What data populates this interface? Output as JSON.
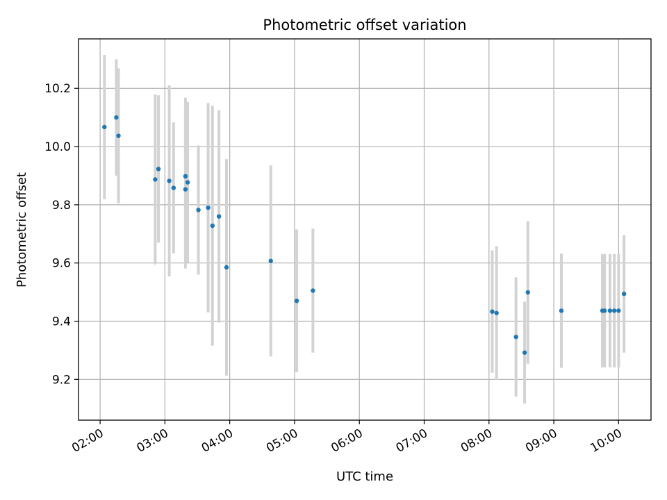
{
  "chart_data": {
    "type": "scatter",
    "title": "Photometric offset variation",
    "xlabel": "UTC time",
    "ylabel": "Photometric offset",
    "x_tick_labels": [
      "02:00",
      "03:00",
      "04:00",
      "05:00",
      "06:00",
      "07:00",
      "08:00",
      "09:00",
      "10:00"
    ],
    "y_tick_labels": [
      "9.2",
      "9.4",
      "9.6",
      "9.8",
      "10.0",
      "10.2"
    ],
    "x_ticks": [
      "02:00",
      "03:00",
      "04:00",
      "05:00",
      "06:00",
      "07:00",
      "08:00",
      "09:00",
      "10:00"
    ],
    "y_ticks": [
      9.2,
      9.4,
      9.6,
      9.8,
      10.0,
      10.2
    ],
    "xlim": [
      "01:40",
      "10:30"
    ],
    "ylim": [
      9.06,
      10.37
    ],
    "grid": true,
    "colors": {
      "marker": "#1f77b4",
      "errorbar": "#d3d3d3",
      "grid": "#b0b0b0"
    },
    "series": [
      {
        "points": [
          {
            "x": "02:04",
            "y": 10.067,
            "err": 0.248
          },
          {
            "x": "02:15",
            "y": 10.1,
            "err": 0.2
          },
          {
            "x": "02:17",
            "y": 10.037,
            "err": 0.232
          },
          {
            "x": "02:51",
            "y": 9.887,
            "err": 0.292
          },
          {
            "x": "02:54",
            "y": 9.923,
            "err": 0.253
          },
          {
            "x": "03:04",
            "y": 9.882,
            "err": 0.328
          },
          {
            "x": "03:08",
            "y": 9.858,
            "err": 0.225
          },
          {
            "x": "03:19",
            "y": 9.898,
            "err": 0.27
          },
          {
            "x": "03:19",
            "y": 9.853,
            "err": 0.272
          },
          {
            "x": "03:21",
            "y": 9.877,
            "err": 0.276
          },
          {
            "x": "03:31",
            "y": 9.782,
            "err": 0.222
          },
          {
            "x": "03:40",
            "y": 9.79,
            "err": 0.36
          },
          {
            "x": "03:44",
            "y": 9.728,
            "err": 0.412
          },
          {
            "x": "03:50",
            "y": 9.76,
            "err": 0.365
          },
          {
            "x": "03:57",
            "y": 9.585,
            "err": 0.372
          },
          {
            "x": "04:38",
            "y": 9.607,
            "err": 0.328
          },
          {
            "x": "05:02",
            "y": 9.47,
            "err": 0.245
          },
          {
            "x": "05:17",
            "y": 9.505,
            "err": 0.213
          },
          {
            "x": "08:03",
            "y": 9.433,
            "err": 0.21
          },
          {
            "x": "08:07",
            "y": 9.428,
            "err": 0.23
          },
          {
            "x": "08:25",
            "y": 9.346,
            "err": 0.205
          },
          {
            "x": "08:33",
            "y": 9.292,
            "err": 0.175
          },
          {
            "x": "08:36",
            "y": 9.499,
            "err": 0.245
          },
          {
            "x": "09:07",
            "y": 9.436,
            "err": 0.196
          },
          {
            "x": "09:45",
            "y": 9.436,
            "err": 0.195
          },
          {
            "x": "09:47",
            "y": 9.436,
            "err": 0.195
          },
          {
            "x": "09:52",
            "y": 9.436,
            "err": 0.195
          },
          {
            "x": "09:56",
            "y": 9.436,
            "err": 0.195
          },
          {
            "x": "10:00",
            "y": 9.436,
            "err": 0.195
          },
          {
            "x": "10:05",
            "y": 9.494,
            "err": 0.202
          }
        ]
      }
    ]
  }
}
